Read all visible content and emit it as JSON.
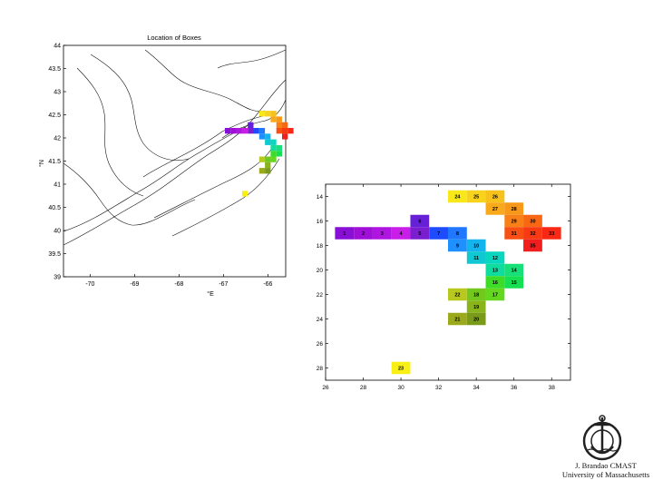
{
  "chart_data": [
    {
      "type": "map",
      "title": "Location of Boxes",
      "xlabel": "°E",
      "ylabel": "°N",
      "xlim": [
        -70.6,
        -65.6
      ],
      "ylim": [
        39,
        44
      ],
      "xticks": [
        "-70",
        "-69",
        "-68",
        "-67",
        "-66"
      ],
      "yticks": [
        "39",
        "39.5",
        "40",
        "40.5",
        "41",
        "41.5",
        "42",
        "42.5",
        "43",
        "43.5",
        "44"
      ],
      "grid": false,
      "boxes_shown_as_colored_cells": true
    },
    {
      "type": "heatmap",
      "title": "",
      "xlabel": "",
      "ylabel": "",
      "xlim": [
        26,
        39
      ],
      "ylim": [
        29,
        13
      ],
      "xticks": [
        "26",
        "28",
        "30",
        "32",
        "34",
        "36",
        "38"
      ],
      "yticks": [
        "14",
        "16",
        "18",
        "20",
        "22",
        "24",
        "26",
        "28"
      ],
      "cells": [
        {
          "id": "1",
          "col": 27,
          "row": 17,
          "color": "#8a0fd6"
        },
        {
          "id": "2",
          "col": 28,
          "row": 17,
          "color": "#a00fd8"
        },
        {
          "id": "3",
          "col": 29,
          "row": 17,
          "color": "#b014e0"
        },
        {
          "id": "4",
          "col": 30,
          "row": 17,
          "color": "#c81ee8"
        },
        {
          "id": "5",
          "col": 31,
          "row": 17,
          "color": "#7a1fd0"
        },
        {
          "id": "6",
          "col": 31,
          "row": 16,
          "color": "#6620d8"
        },
        {
          "id": "7",
          "col": 32,
          "row": 17,
          "color": "#1f4bff"
        },
        {
          "id": "8",
          "col": 33,
          "row": 17,
          "color": "#1f78ff"
        },
        {
          "id": "9",
          "col": 33,
          "row": 18,
          "color": "#1f90ff"
        },
        {
          "id": "10",
          "col": 34,
          "row": 18,
          "color": "#14b4ee"
        },
        {
          "id": "11",
          "col": 34,
          "row": 19,
          "color": "#10c8d2"
        },
        {
          "id": "12",
          "col": 35,
          "row": 19,
          "color": "#0ad6c0"
        },
        {
          "id": "13",
          "col": 35,
          "row": 20,
          "color": "#10dca0"
        },
        {
          "id": "14",
          "col": 36,
          "row": 20,
          "color": "#18e078"
        },
        {
          "id": "15",
          "col": 36,
          "row": 21,
          "color": "#14e052"
        },
        {
          "id": "16",
          "col": 35,
          "row": 21,
          "color": "#3cdc28"
        },
        {
          "id": "17",
          "col": 35,
          "row": 22,
          "color": "#64d81e"
        },
        {
          "id": "18",
          "col": 34,
          "row": 22,
          "color": "#72c81c"
        },
        {
          "id": "19",
          "col": 34,
          "row": 23,
          "color": "#8ab41c"
        },
        {
          "id": "20",
          "col": 34,
          "row": 24,
          "color": "#7a9a1a"
        },
        {
          "id": "21",
          "col": 33,
          "row": 24,
          "color": "#9aaa1a"
        },
        {
          "id": "22",
          "col": 33,
          "row": 22,
          "color": "#b8c81e"
        },
        {
          "id": "23",
          "col": 30,
          "row": 28,
          "color": "#f8f014"
        },
        {
          "id": "24",
          "col": 33,
          "row": 14,
          "color": "#f8e81a"
        },
        {
          "id": "25",
          "col": 34,
          "row": 14,
          "color": "#f8d21c"
        },
        {
          "id": "26",
          "col": 35,
          "row": 14,
          "color": "#f8c21c"
        },
        {
          "id": "27",
          "col": 35,
          "row": 15,
          "color": "#f8aa1c"
        },
        {
          "id": "28",
          "col": 36,
          "row": 15,
          "color": "#f89818"
        },
        {
          "id": "29",
          "col": 36,
          "row": 16,
          "color": "#f88016"
        },
        {
          "id": "30",
          "col": 37,
          "row": 16,
          "color": "#f86814"
        },
        {
          "id": "31",
          "col": 36,
          "row": 17,
          "color": "#f85014"
        },
        {
          "id": "32",
          "col": 37,
          "row": 17,
          "color": "#f83a14"
        },
        {
          "id": "33",
          "col": 38,
          "row": 17,
          "color": "#f82814"
        },
        {
          "id": "35",
          "col": 37,
          "row": 18,
          "color": "#f01e1e"
        }
      ]
    }
  ],
  "footer": {
    "credit_line1": "J. Brandao CMAST",
    "credit_line2": "University of Massachusetts"
  }
}
